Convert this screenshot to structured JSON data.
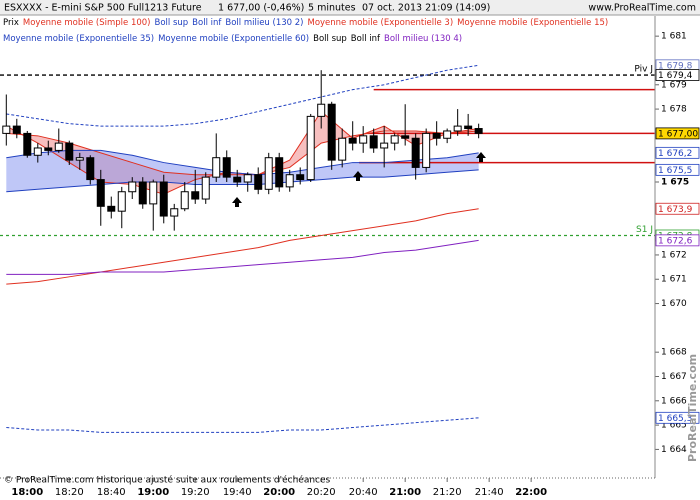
{
  "chart_data": {
    "type": "candlestick",
    "title": "ESXXXX - E-mini S&P 500 Full1213 Future",
    "last_price": "1 677,00 (-0,46%)",
    "period": "5 minutes",
    "date": "07 oct. 2013 21:09 (14:09)",
    "site": "www.ProRealTime.com",
    "footer": "© ProRealTime.com Historique ajusté suite aux roulements d'échéances",
    "watermark": "ProRealTime.com",
    "xlim": [
      1067,
      1379
    ],
    "ylim": [
      1663.4,
      1681.5
    ],
    "xticks": [
      {
        "value": 1080,
        "label": "18:00"
      },
      {
        "value": 1100,
        "label": "18:20"
      },
      {
        "value": 1120,
        "label": "18:40"
      },
      {
        "value": 1140,
        "label": "19:00"
      },
      {
        "value": 1160,
        "label": "19:20"
      },
      {
        "value": 1180,
        "label": "19:40"
      },
      {
        "value": 1200,
        "label": "20:00"
      },
      {
        "value": 1220,
        "label": "20:20"
      },
      {
        "value": 1240,
        "label": "20:40"
      },
      {
        "value": 1260,
        "label": "21:00"
      },
      {
        "value": 1280,
        "label": "21:20"
      },
      {
        "value": 1300,
        "label": "21:40"
      },
      {
        "value": 1320,
        "label": "22:00"
      }
    ],
    "bold_xticks": [
      "18:00",
      "19:00",
      "20:00",
      "21:00",
      "22:00"
    ],
    "yticks": [
      {
        "value": 1681,
        "label": "1 681"
      },
      {
        "value": 1679,
        "label": "1 679"
      },
      {
        "value": 1678,
        "label": "1 678"
      },
      {
        "value": 1675,
        "label": "1 675"
      },
      {
        "value": 1672,
        "label": "1 672"
      },
      {
        "value": 1671,
        "label": "1 671"
      },
      {
        "value": 1670,
        "label": "1 670"
      },
      {
        "value": 1668,
        "label": "1 668"
      },
      {
        "value": 1667,
        "label": "1 667"
      },
      {
        "value": 1666,
        "label": "1 666"
      },
      {
        "value": 1665,
        "label": "1 665"
      },
      {
        "value": 1664,
        "label": "1 664"
      }
    ],
    "bold_yticks": [
      "1 675"
    ],
    "indicator_x": [
      1070,
      1085,
      1100,
      1115,
      1130,
      1145,
      1160,
      1175,
      1190,
      1205,
      1220,
      1235,
      1250,
      1265,
      1280,
      1295
    ],
    "series": [
      {
        "name": "Prix",
        "color": "#000000",
        "x": [
          1070,
          1075,
          1080,
          1085,
          1090,
          1095,
          1100,
          1105,
          1110,
          1115,
          1120,
          1125,
          1130,
          1135,
          1140,
          1145,
          1150,
          1155,
          1160,
          1165,
          1170,
          1175,
          1180,
          1185,
          1190,
          1195,
          1200,
          1205,
          1210,
          1215,
          1220,
          1225,
          1230,
          1235,
          1240,
          1245,
          1250,
          1255,
          1260,
          1265,
          1270,
          1275,
          1280,
          1285,
          1290,
          1295
        ],
        "open": [
          1677.0,
          1677.3,
          1677.0,
          1676.1,
          1676.4,
          1676.3,
          1676.6,
          1675.9,
          1676.0,
          1675.1,
          1674.0,
          1673.8,
          1674.6,
          1675.0,
          1674.1,
          1675.0,
          1673.6,
          1673.9,
          1674.6,
          1674.3,
          1675.2,
          1676.0,
          1675.2,
          1675.0,
          1675.3,
          1674.7,
          1676.0,
          1674.8,
          1675.3,
          1675.1,
          1677.7,
          1678.2,
          1675.9,
          1676.8,
          1676.6,
          1676.9,
          1676.4,
          1676.6,
          1676.9,
          1676.8,
          1675.6,
          1677.0,
          1676.8,
          1677.1,
          1677.3,
          1677.2
        ],
        "high": [
          1678.6,
          1677.6,
          1677.1,
          1676.6,
          1676.7,
          1677.2,
          1676.7,
          1676.2,
          1676.1,
          1675.5,
          1674.4,
          1674.8,
          1675.2,
          1675.2,
          1675.1,
          1675.3,
          1674.1,
          1675.0,
          1675.5,
          1675.4,
          1677.0,
          1676.3,
          1675.5,
          1675.4,
          1675.6,
          1676.2,
          1676.2,
          1675.5,
          1675.6,
          1677.8,
          1679.6,
          1678.3,
          1677.2,
          1677.5,
          1677.3,
          1677.2,
          1677.3,
          1677.0,
          1678.2,
          1677.0,
          1677.2,
          1677.5,
          1677.2,
          1678.0,
          1677.8,
          1677.4
        ],
        "low": [
          1676.5,
          1676.8,
          1676.0,
          1675.8,
          1676.1,
          1676.2,
          1675.7,
          1675.5,
          1674.9,
          1673.2,
          1673.5,
          1673.1,
          1674.3,
          1673.9,
          1673.0,
          1673.3,
          1673.0,
          1673.8,
          1674.1,
          1674.1,
          1675.0,
          1675.0,
          1674.8,
          1674.6,
          1674.5,
          1674.5,
          1674.6,
          1674.6,
          1674.9,
          1675.0,
          1677.2,
          1675.5,
          1675.6,
          1676.3,
          1676.2,
          1676.2,
          1675.6,
          1676.3,
          1676.5,
          1675.1,
          1675.4,
          1676.5,
          1676.6,
          1676.9,
          1676.9,
          1676.8
        ],
        "close": [
          1677.3,
          1677.0,
          1676.1,
          1676.4,
          1676.3,
          1676.6,
          1675.9,
          1676.0,
          1675.1,
          1674.0,
          1673.8,
          1674.6,
          1675.0,
          1674.1,
          1675.0,
          1673.6,
          1673.9,
          1674.6,
          1674.3,
          1675.2,
          1676.0,
          1675.2,
          1675.0,
          1675.3,
          1674.7,
          1676.0,
          1674.8,
          1675.3,
          1675.1,
          1677.7,
          1678.2,
          1675.9,
          1676.8,
          1676.6,
          1676.9,
          1676.4,
          1676.6,
          1676.9,
          1676.8,
          1675.6,
          1677.0,
          1676.8,
          1677.1,
          1677.3,
          1677.2,
          1677.0
        ]
      },
      {
        "name": "Moyenne mobile (Simple 100)",
        "color": "#e03020",
        "values": [
          1670.8,
          1670.9,
          1671.1,
          1671.3,
          1671.5,
          1671.7,
          1671.9,
          1672.1,
          1672.3,
          1672.6,
          1672.8,
          1673.0,
          1673.2,
          1673.4,
          1673.7,
          1673.9
        ]
      },
      {
        "name": "Boll sup",
        "color": "#2040c0",
        "dash": true,
        "values": [
          1677.8,
          1677.6,
          1677.4,
          1677.3,
          1677.3,
          1677.3,
          1677.4,
          1677.6,
          1677.9,
          1678.2,
          1678.5,
          1678.8,
          1679.0,
          1679.3,
          1679.6,
          1679.8
        ]
      },
      {
        "name": "Boll inf",
        "color": "#2040c0",
        "dash": true,
        "values": [
          1664.9,
          1664.8,
          1664.8,
          1664.7,
          1664.7,
          1664.7,
          1664.7,
          1664.7,
          1664.7,
          1664.8,
          1664.8,
          1664.9,
          1665.0,
          1665.1,
          1665.2,
          1665.3
        ]
      },
      {
        "name": "Boll milieu (130 2)",
        "color": "#2040c0"
      },
      {
        "name": "Moyenne mobile (Exponentielle 3)",
        "color": "#e03020",
        "fill": "#f08080",
        "values": [
          1677.3,
          1676.6,
          1675.8,
          1675.0,
          1674.9,
          1674.5,
          1675.1,
          1675.4,
          1675.3,
          1675.9,
          1677.9,
          1676.8,
          1677.3,
          1676.5,
          1677.0,
          1677.1
        ]
      },
      {
        "name": "Moyenne mobile (Exponentielle 15)",
        "color": "#e03020",
        "values": [
          1677.0,
          1676.9,
          1676.6,
          1676.2,
          1675.8,
          1675.4,
          1675.3,
          1675.3,
          1675.3,
          1675.6,
          1676.6,
          1676.9,
          1677.1,
          1677.1,
          1677.0,
          1677.2
        ]
      },
      {
        "name": "Moyenne mobile (Exponentielle 35)",
        "color": "#2040c0",
        "fill": "#8090f0",
        "values": [
          1676.0,
          1676.2,
          1676.3,
          1676.3,
          1676.1,
          1675.8,
          1675.6,
          1675.4,
          1675.3,
          1675.4,
          1675.6,
          1675.8,
          1675.8,
          1675.9,
          1676.0,
          1676.2
        ]
      },
      {
        "name": "Moyenne mobile (Exponentielle 60)",
        "color": "#2040c0",
        "values": [
          1674.6,
          1674.7,
          1674.8,
          1674.9,
          1675.0,
          1675.0,
          1674.9,
          1674.9,
          1674.9,
          1675.0,
          1675.1,
          1675.2,
          1675.2,
          1675.3,
          1675.4,
          1675.5
        ]
      },
      {
        "name": "Boll sup",
        "color": "#000000"
      },
      {
        "name": "Boll inf",
        "color": "#000000"
      },
      {
        "name": "Boll milieu (130 4)",
        "color": "#8020c0",
        "values": [
          1671.2,
          1671.2,
          1671.2,
          1671.3,
          1671.3,
          1671.3,
          1671.4,
          1671.5,
          1671.6,
          1671.7,
          1671.8,
          1671.9,
          1672.1,
          1672.2,
          1672.4,
          1672.6
        ]
      }
    ],
    "legend_rows": [
      7,
      5
    ],
    "levels": [
      {
        "name": "Piv J",
        "value": 1679.4,
        "color": "#000000",
        "dash": true
      },
      {
        "name": "S1 J",
        "value": 1672.8,
        "color": "#30a030",
        "dash": true
      },
      {
        "value": 1678.8,
        "color": "#d01010",
        "from": 1245
      },
      {
        "value": 1677,
        "color": "#d01010",
        "from": 1242
      },
      {
        "value": 1675.8,
        "color": "#d01010",
        "from": 1238
      }
    ],
    "price_labels": [
      {
        "value": 1679.8,
        "label": "1 679,8",
        "color": "#6070c0",
        "bg": "#ffffff"
      },
      {
        "value": 1679.4,
        "label": "1 679,4",
        "color": "#000000",
        "bg": "#ffffff"
      },
      {
        "value": 1677,
        "label": "1 677,00",
        "color": "#000000",
        "bg": "#ffd800"
      },
      {
        "value": 1676.2,
        "label": "1 676,2",
        "color": "#2040c0",
        "bg": "#ffffff"
      },
      {
        "value": 1675.5,
        "label": "1 675,5",
        "color": "#2040c0",
        "bg": "#ffffff"
      },
      {
        "value": 1673.9,
        "label": "1 673,9",
        "color": "#d02020",
        "bg": "#ffffff"
      },
      {
        "value": 1672.8,
        "label": "1 672,8",
        "color": "#30a030",
        "bg": "#ffffff"
      },
      {
        "value": 1672.6,
        "label": "1 672,6",
        "color": "#8020c0",
        "bg": "#ffffff"
      },
      {
        "value": 1665.3,
        "label": "1 665,3",
        "color": "#2040c0",
        "bg": "#ffffff"
      }
    ]
  }
}
